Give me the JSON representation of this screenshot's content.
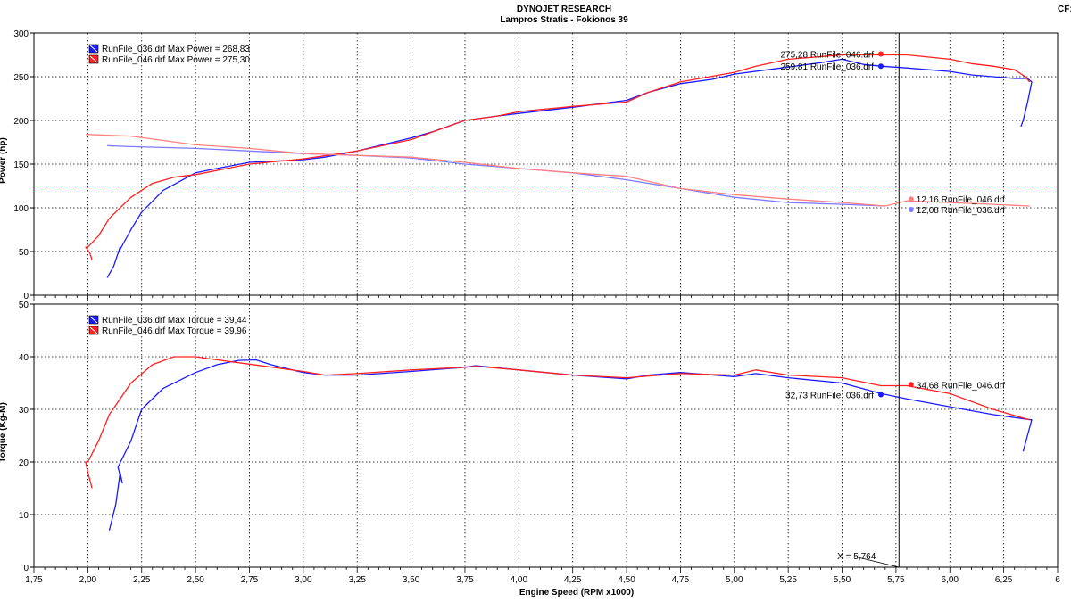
{
  "header": {
    "title": "DYNOJET RESEARCH",
    "subtitle": "Lampros Stratis - Fokionos 39",
    "cf": "CF:"
  },
  "chart_data": [
    {
      "type": "line",
      "name": "power",
      "ylabel": "Power (hp)",
      "ylim": [
        0,
        300
      ],
      "yticks": [
        "0",
        "50",
        "100",
        "150",
        "200",
        "250",
        "300"
      ],
      "xlim": [
        1.75,
        6.5
      ],
      "grid": true,
      "legend": [
        {
          "text": "RunFile_036.drf Max Power = 268,83",
          "color": "#1a1aff"
        },
        {
          "text": "RunFile_046.drf Max Power = 275,30",
          "color": "#ff2020"
        }
      ],
      "reference_line": {
        "y": 125,
        "color": "#ff2020"
      },
      "series": [
        {
          "name": "RunFile_036.drf",
          "kind": "power",
          "color": "#1a1aff",
          "x": [
            2.09,
            2.12,
            2.15,
            2.14,
            2.2,
            2.25,
            2.35,
            2.5,
            2.6,
            2.75,
            3.0,
            3.1,
            3.25,
            3.4,
            3.5,
            3.6,
            3.75,
            3.9,
            4.0,
            4.25,
            4.5,
            4.6,
            4.75,
            4.9,
            5.0,
            5.25,
            5.4,
            5.5,
            5.6,
            5.68,
            5.8,
            5.9,
            6.0,
            6.1,
            6.2,
            6.3,
            6.36,
            6.38,
            6.36,
            6.34,
            6.33
          ],
          "y": [
            20,
            33,
            55,
            48,
            75,
            95,
            120,
            140,
            145,
            152,
            155,
            158,
            165,
            174,
            180,
            187,
            200,
            205,
            208,
            215,
            223,
            232,
            242,
            247,
            253,
            261,
            266,
            270,
            264,
            262,
            260,
            258,
            256,
            252,
            250,
            248,
            248,
            244,
            220,
            200,
            193
          ]
        },
        {
          "name": "RunFile_046.drf",
          "kind": "power",
          "color": "#ff2020",
          "x": [
            2.02,
            2.01,
            1.99,
            2.0,
            2.05,
            2.1,
            2.2,
            2.3,
            2.4,
            2.5,
            2.75,
            3.0,
            3.25,
            3.5,
            3.75,
            3.9,
            4.0,
            4.25,
            4.5,
            4.6,
            4.75,
            5.0,
            5.1,
            5.25,
            5.5,
            5.68,
            5.8,
            6.0,
            6.1,
            6.2,
            6.3,
            6.35,
            6.37
          ],
          "y": [
            40,
            48,
            55,
            55,
            68,
            88,
            112,
            128,
            135,
            138,
            150,
            156,
            165,
            178,
            200,
            205,
            210,
            216,
            221,
            232,
            244,
            255,
            262,
            270,
            275,
            275,
            275,
            270,
            265,
            262,
            258,
            250,
            244
          ]
        },
        {
          "name": "RunFile_036.drf",
          "kind": "torque-hp",
          "color": "#7a7aff",
          "x": [
            2.09,
            2.2,
            2.5,
            2.75,
            3.0,
            3.25,
            3.5,
            3.75,
            4.0,
            4.25,
            4.5,
            4.75,
            5.0,
            5.25,
            5.5,
            5.7
          ],
          "y": [
            171,
            170,
            168,
            165,
            162,
            160,
            157,
            150,
            145,
            140,
            132,
            122,
            112,
            106,
            104,
            102
          ]
        },
        {
          "name": "RunFile_046.drf",
          "kind": "torque-hp",
          "color": "#ff8080",
          "x": [
            1.99,
            2.2,
            2.5,
            2.75,
            3.0,
            3.25,
            3.5,
            3.75,
            4.0,
            4.25,
            4.5,
            4.75,
            5.0,
            5.25,
            5.5,
            5.7,
            5.8,
            6.0,
            6.2,
            6.37
          ],
          "y": [
            184,
            182,
            172,
            168,
            162,
            160,
            158,
            152,
            145,
            140,
            136,
            122,
            115,
            110,
            106,
            102,
            108,
            106,
            104,
            102
          ]
        }
      ],
      "markers": [
        {
          "text": "275,28 RunFile_046.drf",
          "x": 5.68,
          "y": 276,
          "color": "#ff2020",
          "side": "left"
        },
        {
          "text": "259,81 RunFile_036.drf",
          "x": 5.68,
          "y": 262,
          "color": "#1a1aff",
          "side": "left"
        },
        {
          "text": "12,16 RunFile_046.drf",
          "x": 5.82,
          "y": 110,
          "color": "#ff8080",
          "side": "right"
        },
        {
          "text": "12,08 RunFile_036.drf",
          "x": 5.82,
          "y": 98,
          "color": "#7a7aff",
          "side": "right"
        }
      ]
    },
    {
      "type": "line",
      "name": "torque",
      "xlabel": "Engine Speed (RPM x1000)",
      "ylabel": "Torque (Kg-M)",
      "ylim": [
        0,
        50
      ],
      "yticks": [
        "0",
        "10",
        "20",
        "30",
        "40",
        "50"
      ],
      "xlim": [
        1.75,
        6.5
      ],
      "xticks": [
        "1,75",
        "2,00",
        "2,25",
        "2,50",
        "2,75",
        "3,00",
        "3,25",
        "3,50",
        "3,75",
        "4,00",
        "4,25",
        "4,50",
        "4,75",
        "5,00",
        "5,25",
        "5,50",
        "5,75",
        "6,00",
        "6,25",
        "6"
      ],
      "grid": true,
      "legend": [
        {
          "text": "RunFile_036.drf Max Torque = 39,44",
          "color": "#1a1aff"
        },
        {
          "text": "RunFile_046.drf Max Torque = 39,96",
          "color": "#ff2020"
        }
      ],
      "series": [
        {
          "name": "RunFile_036.drf",
          "color": "#1a1aff",
          "x": [
            2.1,
            2.13,
            2.15,
            2.16,
            2.14,
            2.2,
            2.25,
            2.35,
            2.5,
            2.6,
            2.7,
            2.78,
            2.85,
            3.0,
            3.1,
            3.25,
            3.5,
            3.75,
            3.8,
            4.0,
            4.25,
            4.5,
            4.6,
            4.75,
            5.0,
            5.1,
            5.25,
            5.5,
            5.68,
            5.8,
            6.0,
            6.2,
            6.38,
            6.36,
            6.34
          ],
          "y": [
            7,
            12,
            18,
            16,
            19,
            24,
            30,
            34,
            37,
            38.5,
            39.3,
            39.4,
            38.5,
            37,
            36.5,
            36.5,
            37.2,
            38,
            38.3,
            37.5,
            36.5,
            35.8,
            36.5,
            37,
            36.2,
            36.8,
            36,
            35,
            33,
            32,
            30.5,
            29,
            28,
            25,
            22
          ]
        },
        {
          "name": "RunFile_046.drf",
          "color": "#ff2020",
          "x": [
            2.02,
            2.0,
            1.99,
            2.0,
            2.05,
            2.1,
            2.2,
            2.3,
            2.4,
            2.5,
            2.6,
            2.75,
            3.0,
            3.1,
            3.25,
            3.5,
            3.75,
            3.8,
            4.0,
            4.25,
            4.5,
            4.75,
            5.0,
            5.1,
            5.25,
            5.5,
            5.68,
            5.8,
            6.0,
            6.2,
            6.37
          ],
          "y": [
            15,
            18,
            20,
            20,
            24,
            29,
            35,
            38.5,
            40,
            40,
            39.4,
            38.6,
            37.2,
            36.5,
            36.8,
            37.5,
            38,
            38.2,
            37.5,
            36.5,
            36,
            36.8,
            36.5,
            37.5,
            36.5,
            36,
            34.5,
            34.5,
            33,
            30,
            28
          ]
        }
      ],
      "markers": [
        {
          "text": "34,68 RunFile_046.drf",
          "x": 5.82,
          "y": 34.7,
          "color": "#ff2020",
          "side": "right"
        },
        {
          "text": "32,73 RunFile_036.drf",
          "x": 5.68,
          "y": 32.8,
          "color": "#1a1aff",
          "side": "left"
        }
      ],
      "cursor": {
        "x": 5.764,
        "label": "X = 5,764"
      }
    }
  ]
}
